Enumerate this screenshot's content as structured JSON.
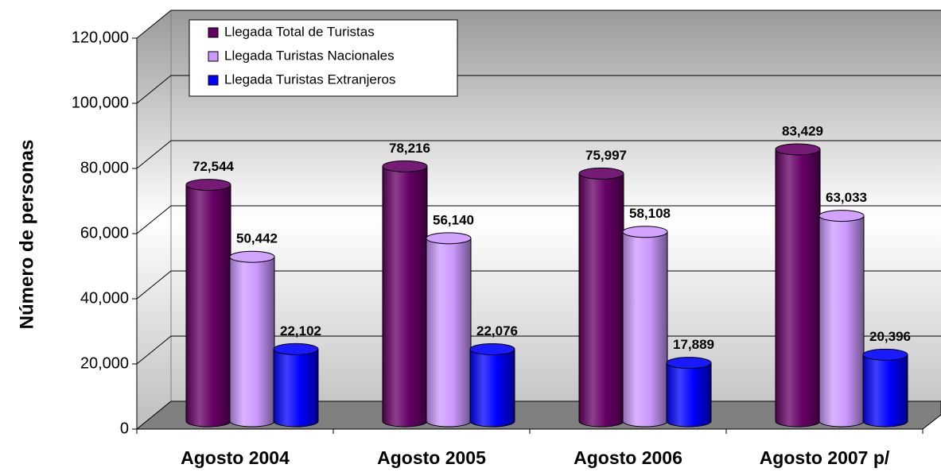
{
  "chart_data": {
    "type": "bar3d",
    "y_axis_label": "Número de personas",
    "categories": [
      "Agosto 2004",
      "Agosto 2005",
      "Agosto 2006",
      "Agosto 2007 p/"
    ],
    "series": [
      {
        "name": "Llegada Total de Turistas",
        "color": "#660066",
        "values": [
          72544,
          78216,
          75997,
          83429
        ],
        "value_labels": [
          "72,544",
          "78,216",
          "75,997",
          "83,429"
        ]
      },
      {
        "name": "Llegada Turistas Nacionales",
        "color": "#cc99ff",
        "values": [
          50442,
          56140,
          58108,
          63033
        ],
        "value_labels": [
          "50,442",
          "56,140",
          "58,108",
          "63,033"
        ]
      },
      {
        "name": "Llegada Turistas Extranjeros",
        "color": "#0000ff",
        "values": [
          22102,
          22076,
          17889,
          20396
        ],
        "value_labels": [
          "22,102",
          "22,076",
          "17,889",
          "20,396"
        ]
      }
    ],
    "ylim": [
      0,
      120000
    ],
    "yticks": [
      0,
      {
        "value": 20000,
        "label": "20,000"
      },
      {
        "value": 40000,
        "label": "40,000"
      },
      {
        "value": 60000,
        "label": "60,000"
      },
      {
        "value": 80000,
        "label": "80,000"
      },
      {
        "value": 100000,
        "label": "100,000"
      },
      {
        "value": 120000,
        "label": "120,000"
      }
    ],
    "grid": true
  }
}
